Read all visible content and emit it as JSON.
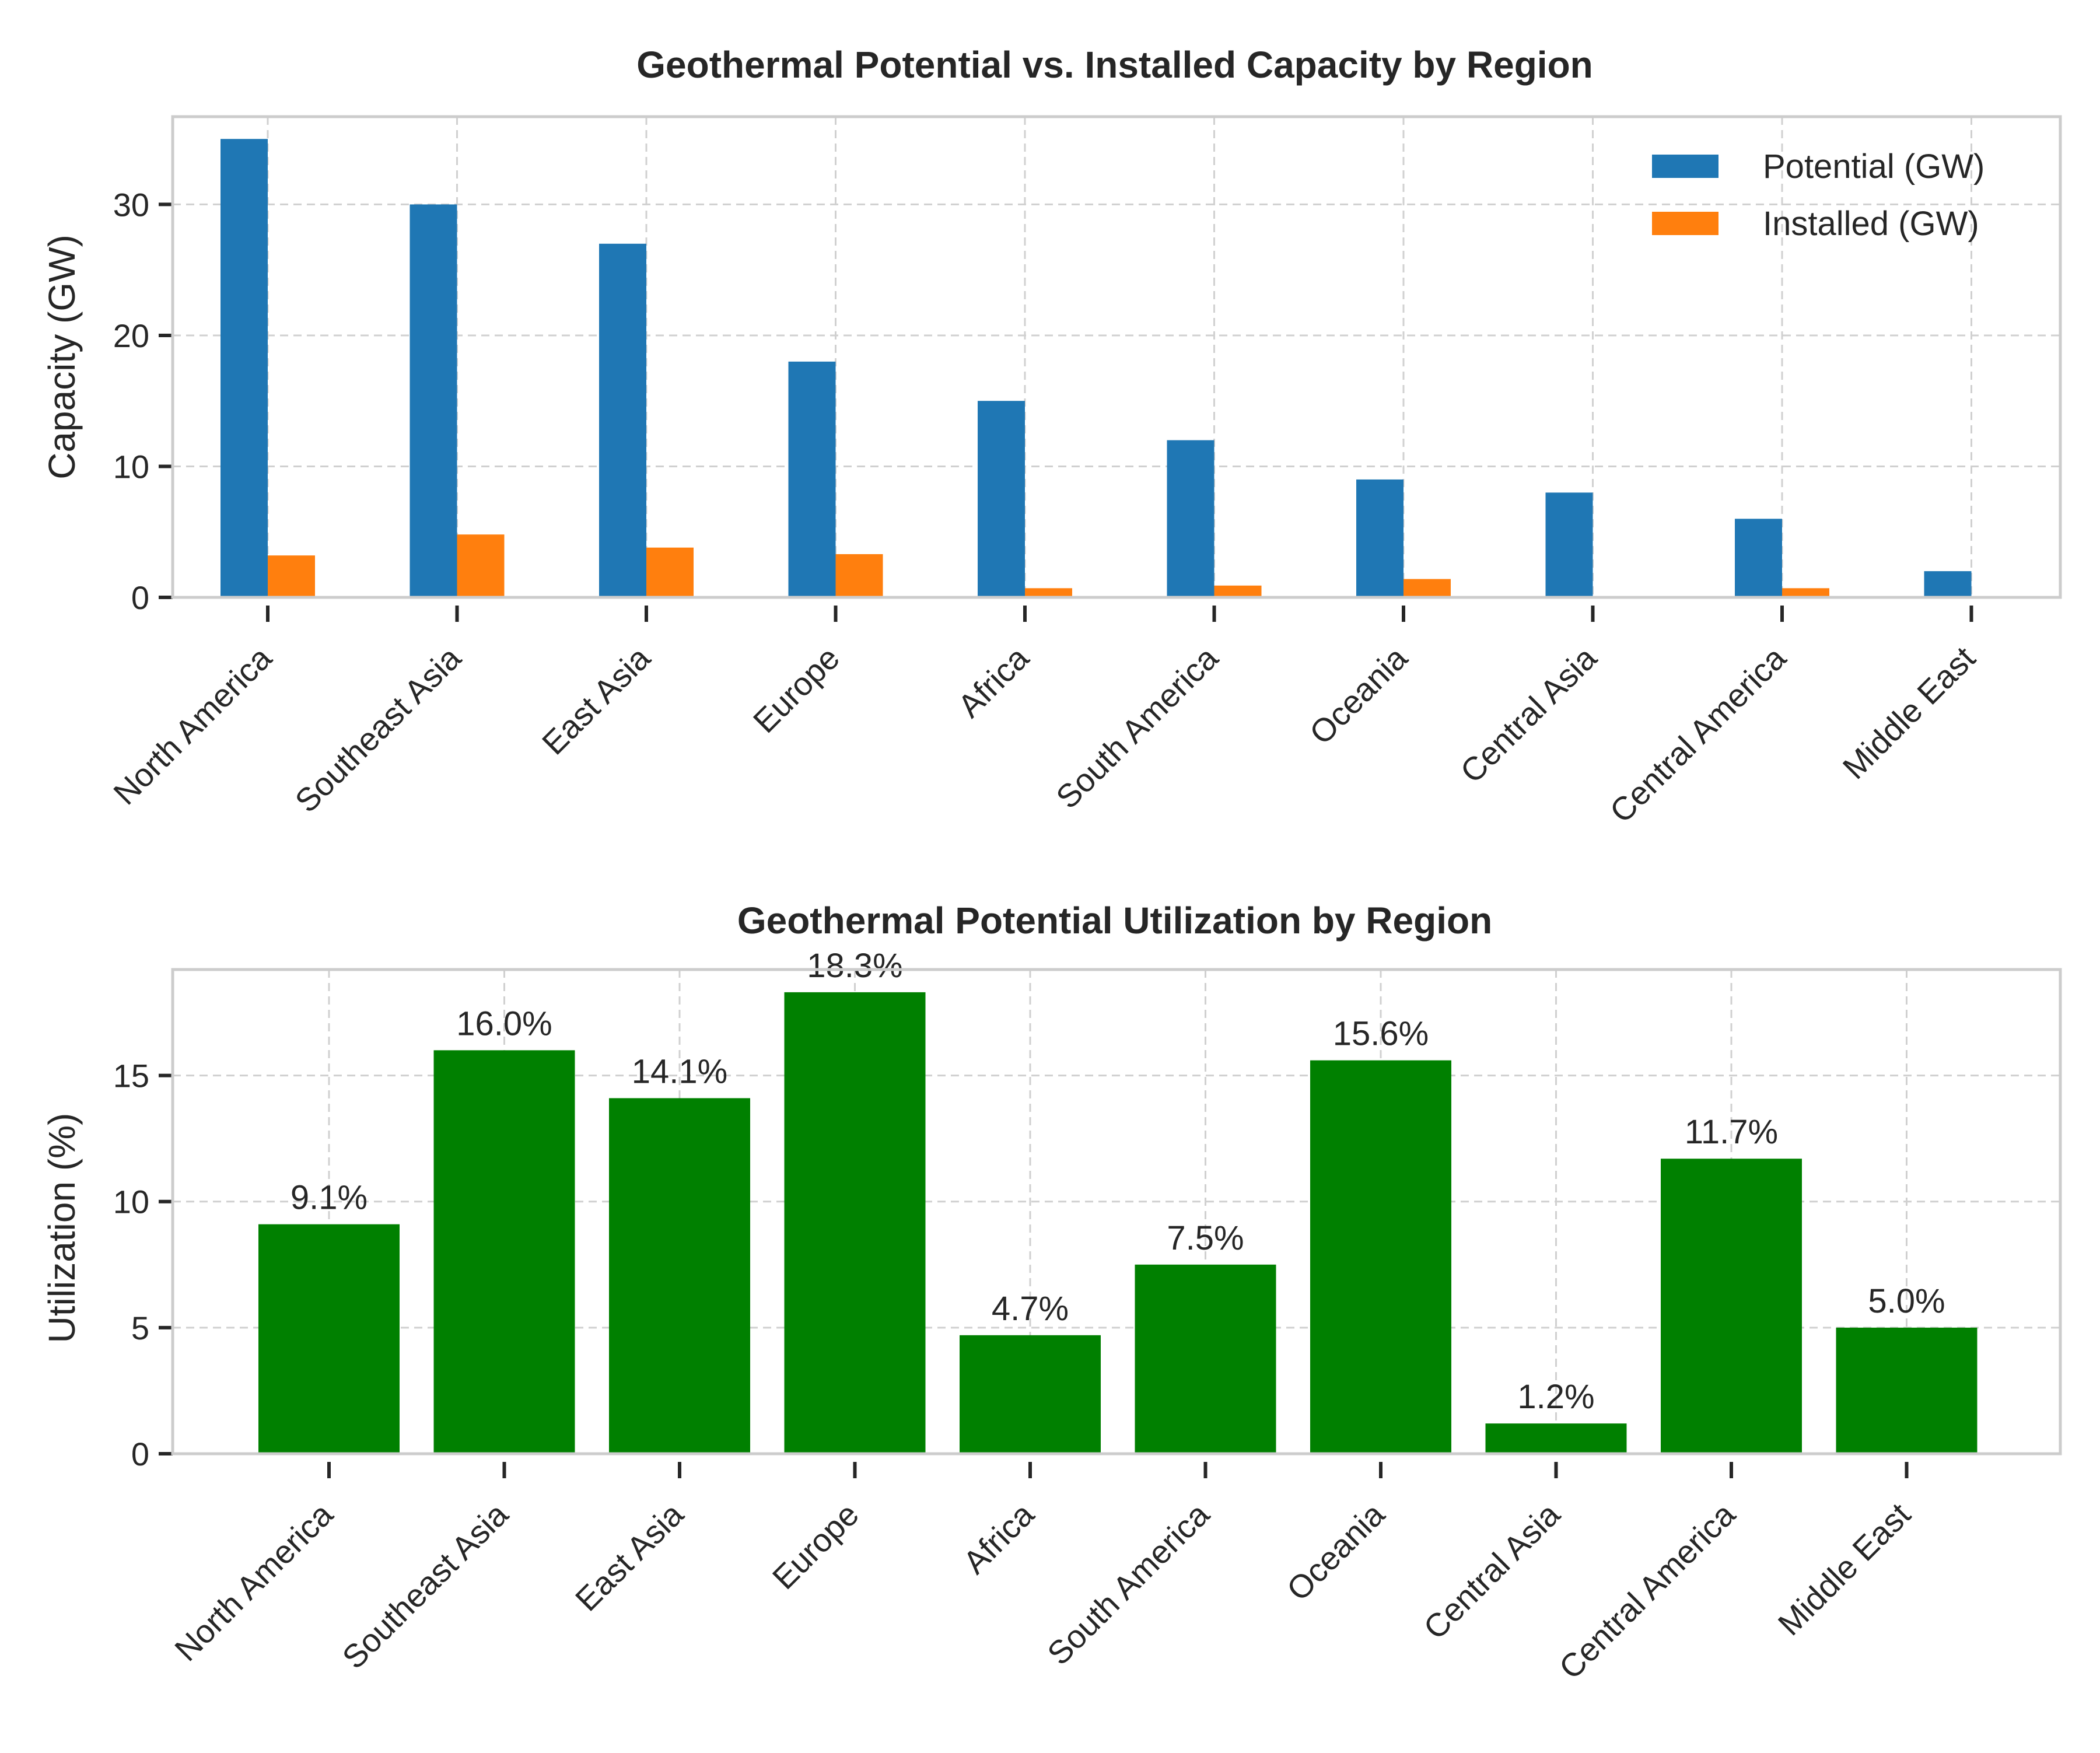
{
  "chart_data": [
    {
      "type": "bar",
      "title": "Geothermal Potential vs. Installed Capacity by Region",
      "xlabel": "",
      "ylabel": "Capacity (GW)",
      "ylim": [
        0,
        36.7
      ],
      "yticks": [
        0,
        10,
        20,
        30
      ],
      "grid": true,
      "legend_position": "top-right",
      "categories": [
        "North America",
        "Southeast Asia",
        "East Asia",
        "Europe",
        "Africa",
        "South America",
        "Oceania",
        "Central Asia",
        "Central America",
        "Middle East"
      ],
      "series": [
        {
          "name": "Potential (GW)",
          "color": "#1f77b4",
          "values": [
            35,
            30,
            27,
            18,
            15,
            12,
            9,
            8,
            6,
            2
          ]
        },
        {
          "name": "Installed (GW)",
          "color": "#ff7f0e",
          "values": [
            3.2,
            4.8,
            3.8,
            3.3,
            0.7,
            0.9,
            1.4,
            0.1,
            0.7,
            0.1
          ]
        }
      ]
    },
    {
      "type": "bar",
      "title": "Geothermal Potential Utilization by Region",
      "xlabel": "",
      "ylabel": "Utilization (%)",
      "ylim": [
        0,
        19.2
      ],
      "yticks": [
        0,
        5,
        10,
        15
      ],
      "grid": true,
      "color": "#008000",
      "categories": [
        "North America",
        "Southeast Asia",
        "East Asia",
        "Europe",
        "Africa",
        "South America",
        "Oceania",
        "Central Asia",
        "Central America",
        "Middle East"
      ],
      "values": [
        9.1,
        16.0,
        14.1,
        18.3,
        4.7,
        7.5,
        15.6,
        1.2,
        11.7,
        5.0
      ],
      "data_labels": [
        "9.1%",
        "16.0%",
        "14.1%",
        "18.3%",
        "4.7%",
        "7.5%",
        "15.6%",
        "1.2%",
        "11.7%",
        "5.0%"
      ]
    }
  ]
}
